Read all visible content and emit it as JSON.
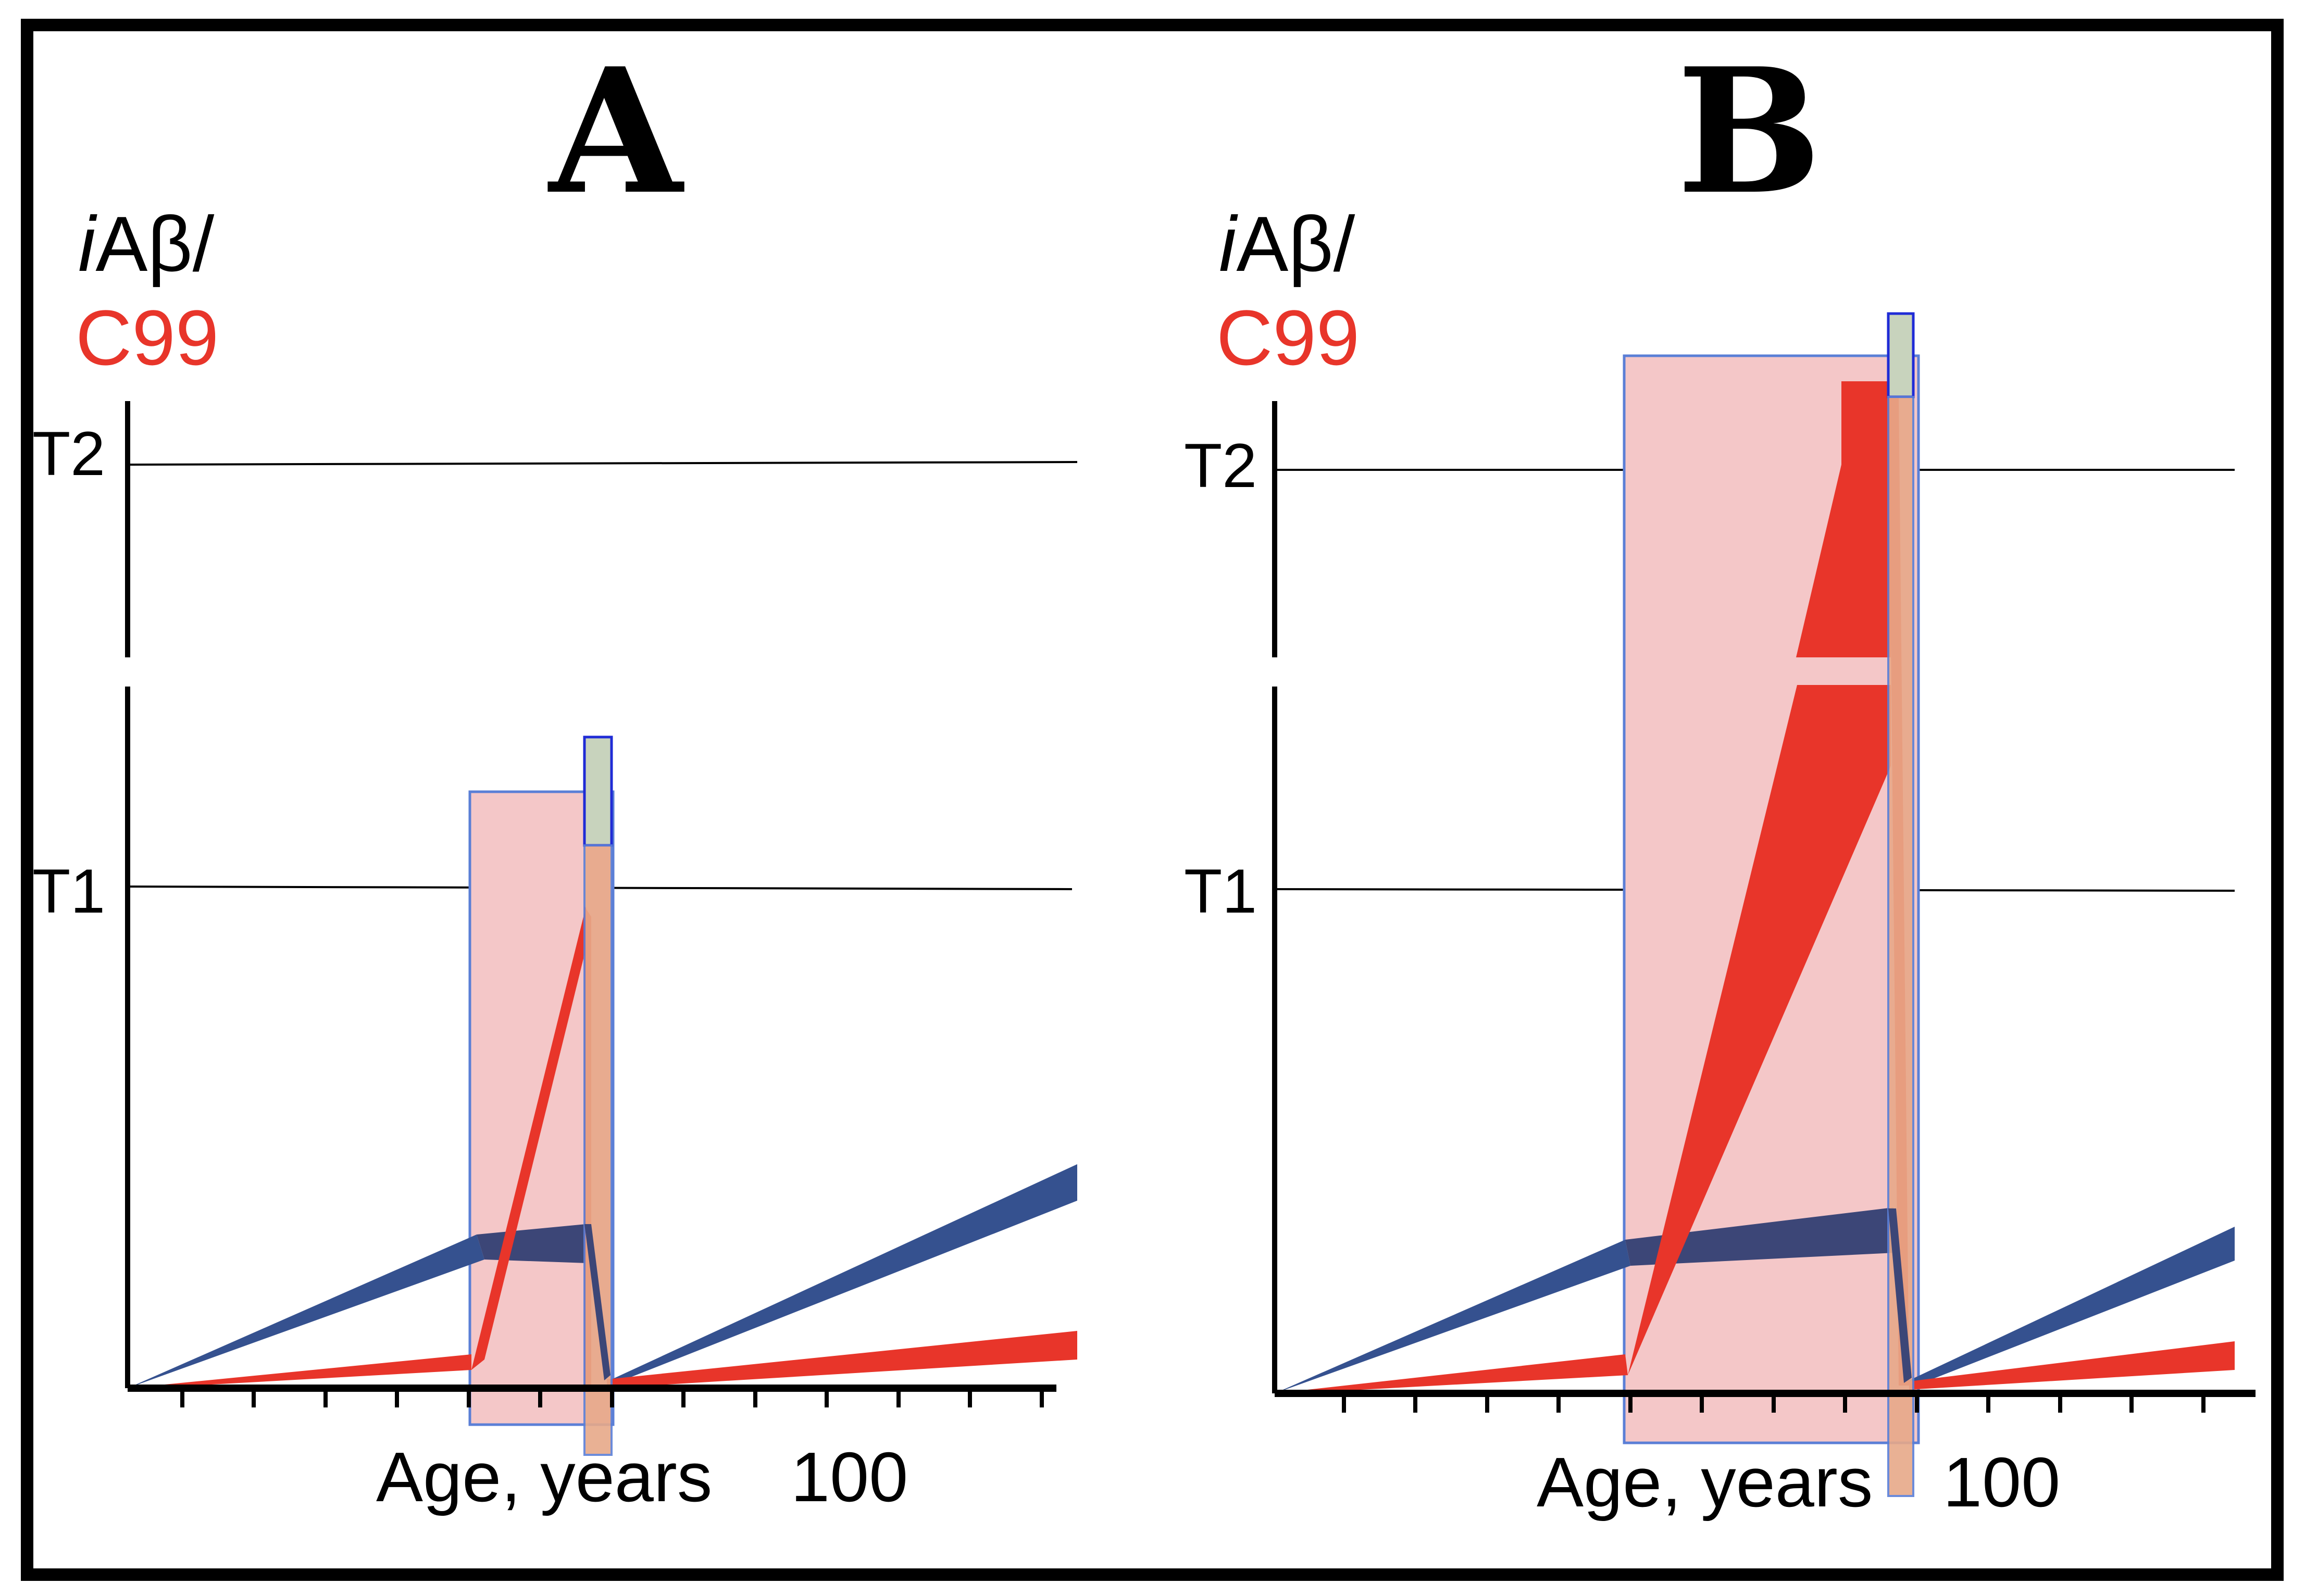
{
  "figure": {
    "panels": [
      {
        "id": "A",
        "title": "A",
        "ylabel_prefix": "i",
        "ylabel_main": "Aβ/",
        "ylabel_c99": "C99",
        "thresholds": [
          "T2",
          "T1"
        ],
        "xlabel": "Age, years",
        "xtick_label": "100"
      },
      {
        "id": "B",
        "title": "B",
        "ylabel_prefix": "i",
        "ylabel_main": "Aβ/",
        "ylabel_c99": "C99",
        "thresholds": [
          "T2",
          "T1"
        ],
        "xlabel": "Age, years",
        "xtick_label": "100"
      }
    ],
    "colors": {
      "iabeta": "#35518f",
      "c99": "#e8352a",
      "window_fill": "#f4c7c8",
      "window_stroke": "#5b7fd6",
      "narrow_box_top": "#c8d3bd",
      "narrow_box_bottom": "#e7a989",
      "frame": "#000000"
    }
  }
}
